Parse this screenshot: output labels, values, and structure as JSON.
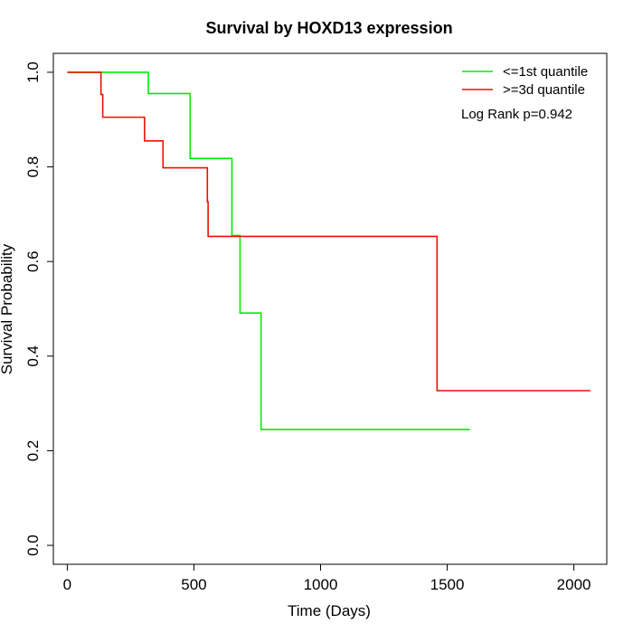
{
  "chart_data": {
    "type": "line",
    "title": "Survival by HOXD13 expression",
    "xlabel": "Time (Days)",
    "ylabel": "Survival Probability",
    "xlim": [
      -55,
      2130
    ],
    "ylim": [
      -0.04,
      1.04
    ],
    "xticks": [
      0,
      500,
      1000,
      1500,
      2000
    ],
    "xtick_labels": [
      "0",
      "500",
      "1000",
      "1500",
      "2000"
    ],
    "yticks": [
      0.0,
      0.2,
      0.4,
      0.6,
      0.8,
      1.0
    ],
    "ytick_labels": [
      "0.0",
      "0.2",
      "0.4",
      "0.6",
      "0.8",
      "1.0"
    ],
    "grid": false,
    "legend_position": "top-right",
    "annotation": "Log Rank p=0.942",
    "series": [
      {
        "name": "<=1st quantile",
        "color": "#00ee00",
        "step": true,
        "x": [
          0,
          320,
          485,
          650,
          682,
          765,
          1590
        ],
        "y": [
          1.0,
          0.955,
          0.818,
          0.655,
          0.491,
          0.245,
          0.245
        ]
      },
      {
        "name": ">=3d quantile",
        "color": "#ee1100",
        "step": true,
        "x": [
          0,
          133,
          140,
          305,
          378,
          553,
          556,
          1460,
          2065
        ],
        "y": [
          1.0,
          0.953,
          0.905,
          0.855,
          0.798,
          0.726,
          0.653,
          0.327,
          0.327
        ]
      }
    ]
  }
}
